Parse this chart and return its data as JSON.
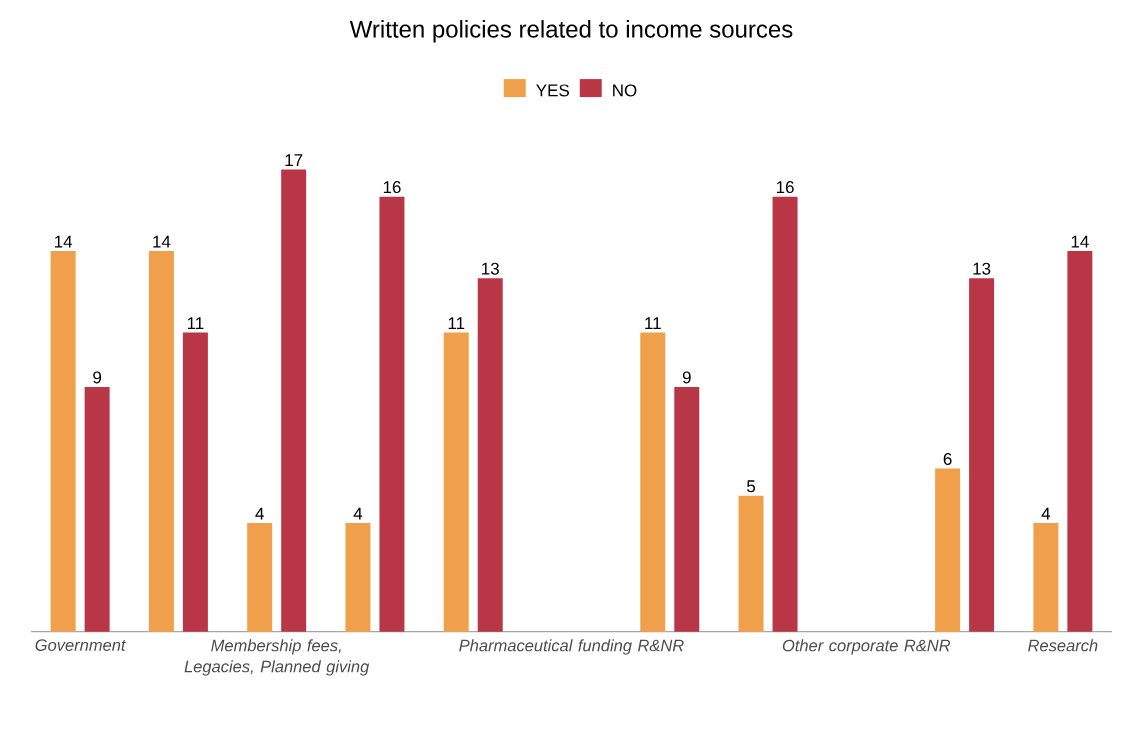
{
  "chart_data": {
    "type": "bar",
    "title": "Written policies related to income sources",
    "categories": [
      "Government",
      null,
      "Membership fees, Legacies, Planned giving",
      null,
      null,
      "Pharmaceutical funding R&NR",
      null,
      null,
      "Other corporate R&NR",
      null,
      "Research"
    ],
    "series": [
      {
        "name": "YES",
        "color": "#f0a04b",
        "values": [
          14,
          14,
          4,
          4,
          11,
          null,
          11,
          5,
          null,
          6,
          4
        ]
      },
      {
        "name": "NO",
        "color": "#b83645",
        "values": [
          9,
          11,
          17,
          16,
          13,
          null,
          9,
          16,
          null,
          13,
          14
        ]
      }
    ],
    "data_labels": true,
    "legend": "top"
  }
}
